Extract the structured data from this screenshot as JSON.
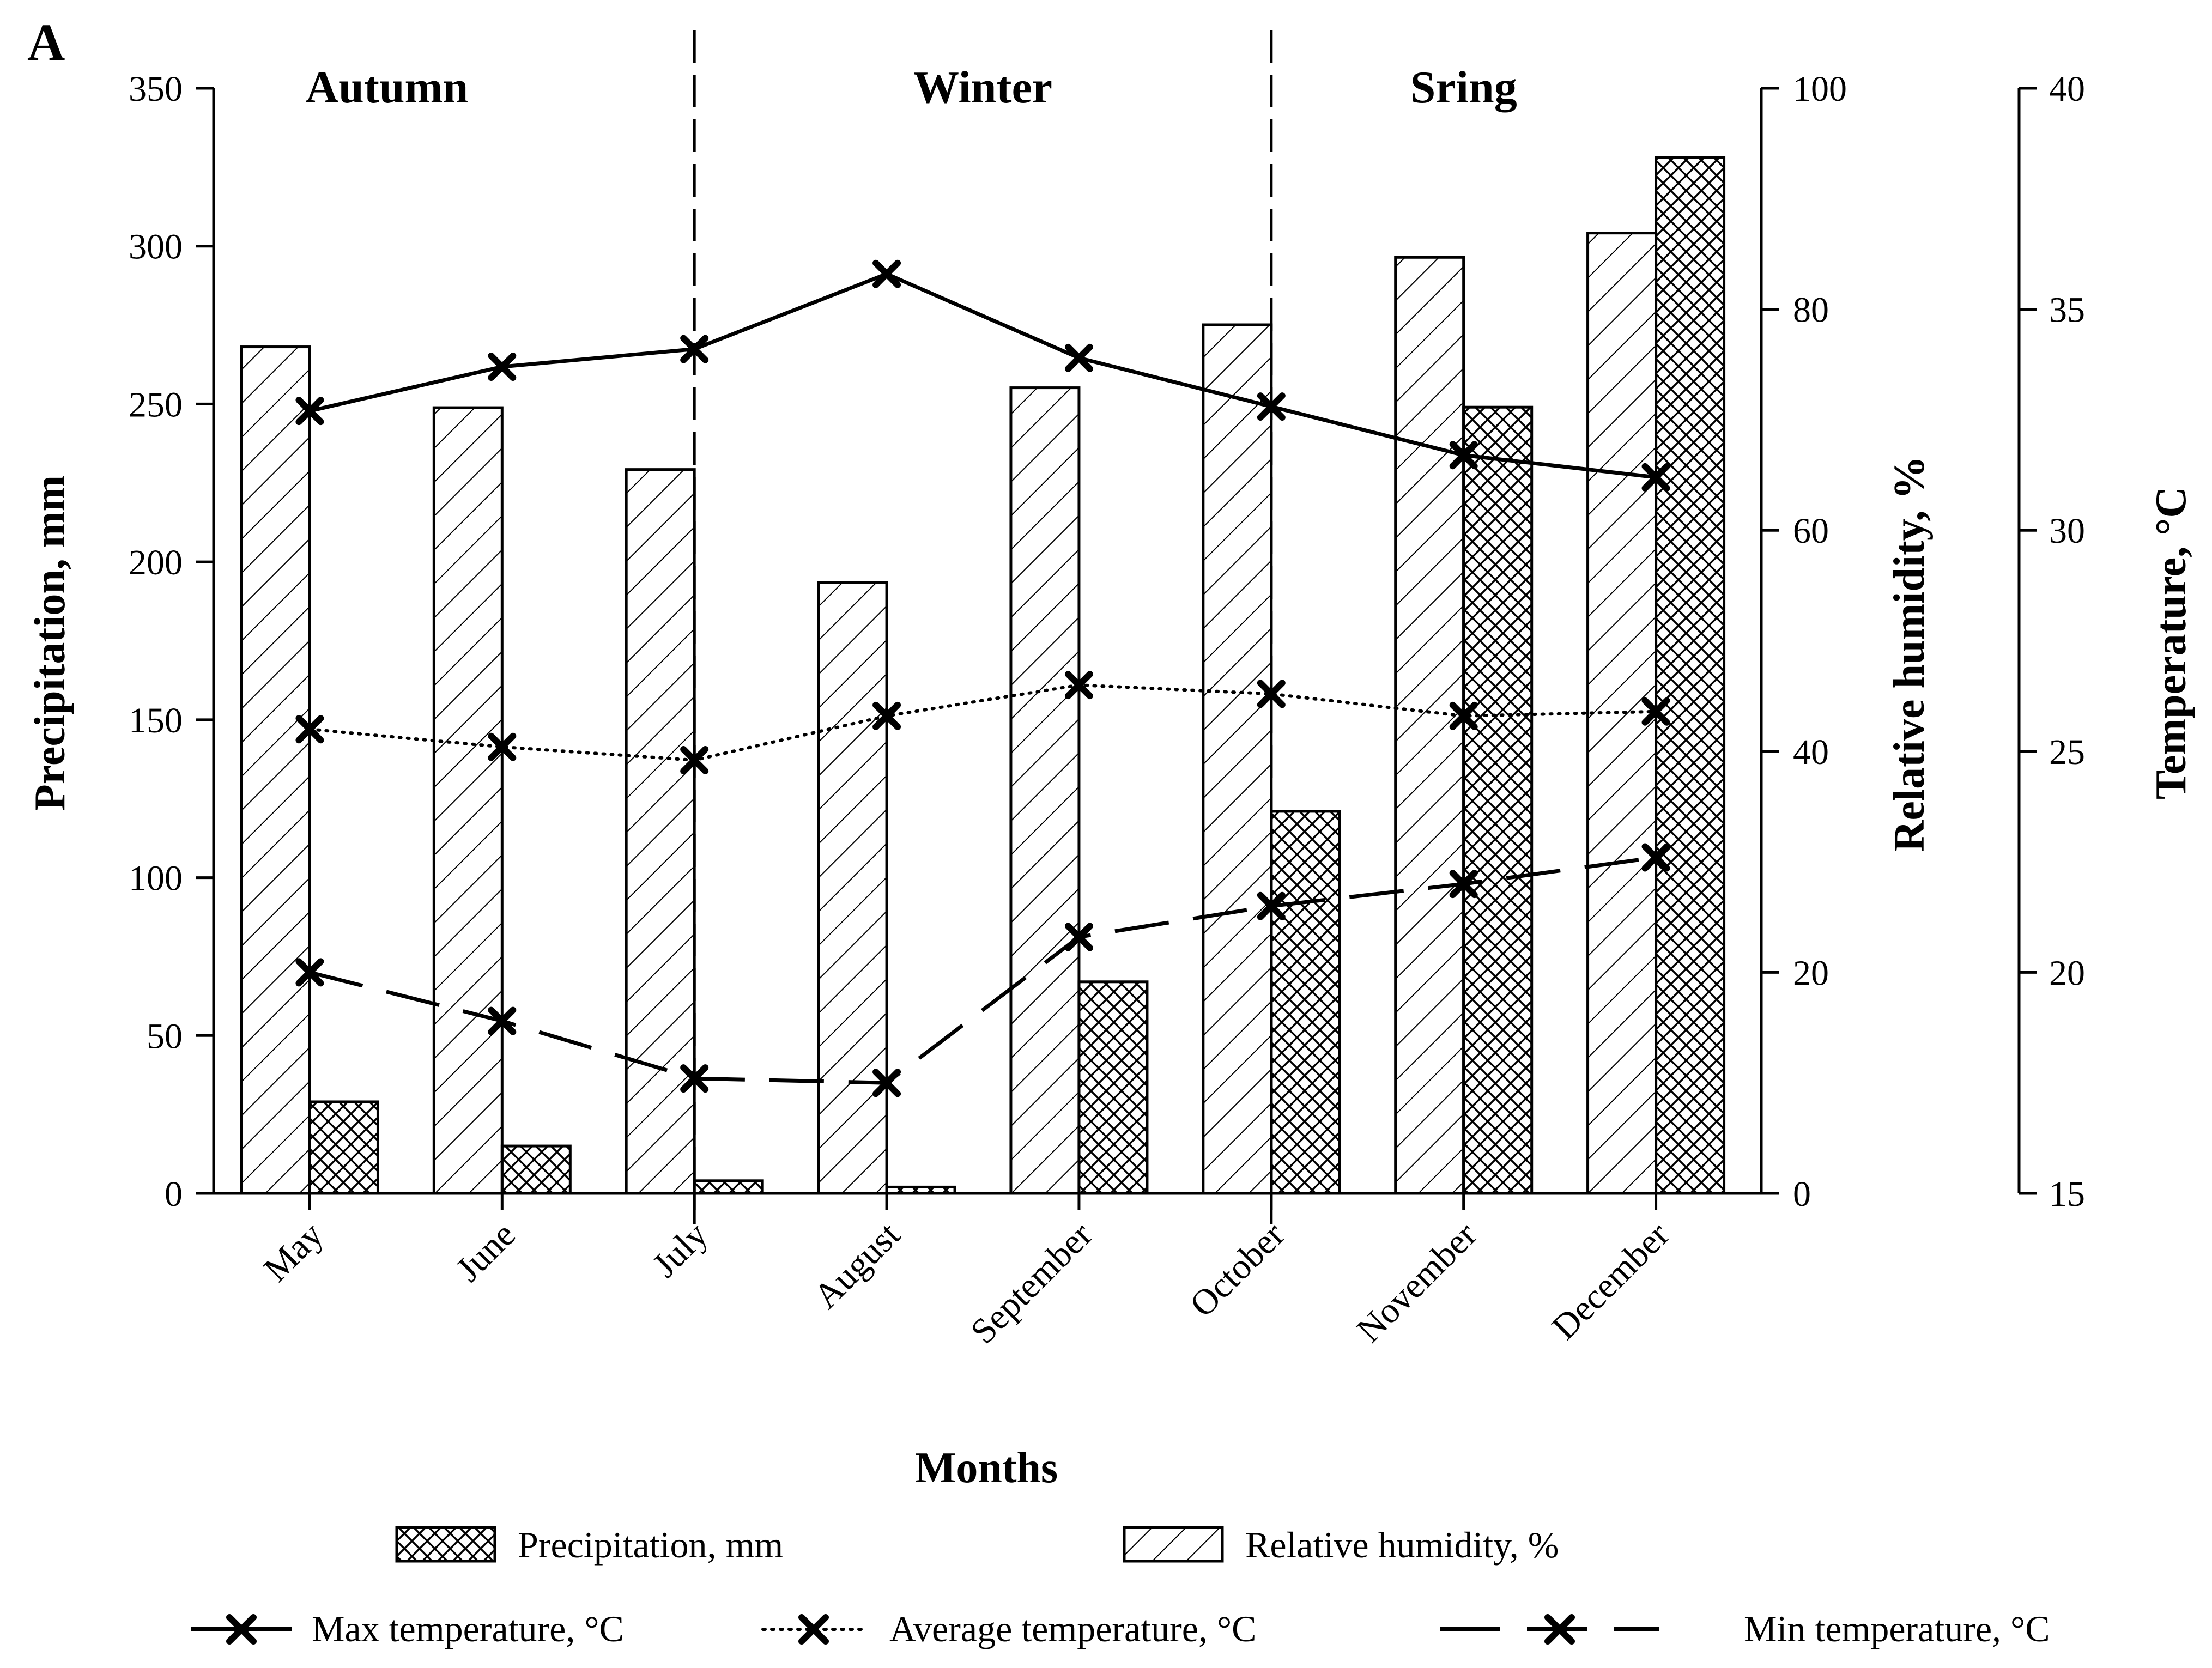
{
  "chart_data": {
    "type": "bar+line",
    "panel_label": "A",
    "xlabel": "Months",
    "categories": [
      "May",
      "June",
      "July",
      "August",
      "September",
      "October",
      "November",
      "December"
    ],
    "seasons": [
      "Autumn",
      "Winter",
      "Sring"
    ],
    "axes": {
      "precipitation": {
        "label": "Precipitation, mm",
        "ylim": [
          0,
          350
        ],
        "ticks": [
          0,
          50,
          100,
          150,
          200,
          250,
          300,
          350
        ]
      },
      "humidity": {
        "label": "Relative humidity, %",
        "ylim": [
          0,
          100
        ],
        "ticks": [
          0,
          20,
          40,
          60,
          80,
          100
        ]
      },
      "temperature": {
        "label": "Temperature, °C",
        "ylim": [
          15,
          40
        ],
        "ticks": [
          15,
          20,
          25,
          30,
          35,
          40
        ]
      }
    },
    "series": [
      {
        "name": "Precipitation, mm",
        "kind": "bar",
        "axis": "precipitation",
        "values": [
          29,
          15,
          4,
          2,
          67,
          121,
          249,
          328
        ]
      },
      {
        "name": "Relative humidity, %",
        "kind": "bar",
        "axis": "humidity",
        "values": [
          76.6,
          71.1,
          65.5,
          55.3,
          72.9,
          78.6,
          84.7,
          86.9
        ]
      },
      {
        "name": "Max temperature, °C",
        "kind": "line",
        "axis": "temperature",
        "style": "solid",
        "values": [
          32.7,
          33.7,
          34.1,
          35.8,
          33.9,
          32.8,
          31.7,
          31.2
        ]
      },
      {
        "name": "Average temperature, °C",
        "kind": "line",
        "axis": "temperature",
        "style": "dotted",
        "values": [
          25.5,
          25.1,
          24.8,
          25.8,
          26.5,
          26.3,
          25.8,
          25.9
        ]
      },
      {
        "name": "Min temperature, °C",
        "kind": "line",
        "axis": "temperature",
        "style": "dashed",
        "values": [
          20.0,
          18.9,
          17.6,
          17.5,
          20.8,
          21.5,
          22.0,
          22.6
        ]
      }
    ],
    "legend": {
      "bars": [
        "Precipitation, mm",
        "Relative humidity, %"
      ],
      "lines": [
        "Max temperature, °C",
        "Average temperature, °C",
        "Min temperature, °C"
      ]
    }
  }
}
